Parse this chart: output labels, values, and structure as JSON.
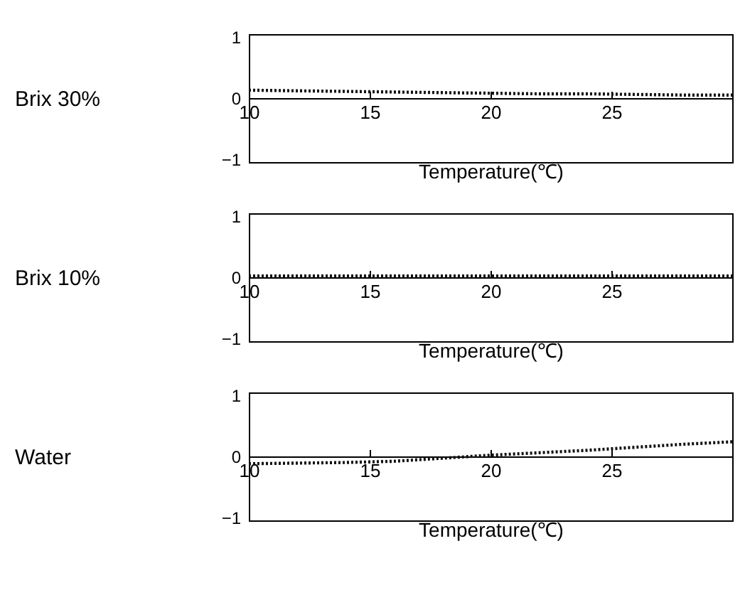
{
  "chart_data": [
    {
      "type": "line",
      "ylabel": "Brix 30%",
      "xlabel": "Temperature(℃)",
      "x": [
        10,
        12,
        14,
        16,
        18,
        20,
        22,
        24,
        26,
        28,
        30
      ],
      "series": [
        {
          "color": "#111111",
          "values": [
            0.13,
            0.12,
            0.11,
            0.1,
            0.09,
            0.08,
            0.07,
            0.07,
            0.06,
            0.05,
            0.05
          ]
        }
      ],
      "xlim": [
        10,
        30
      ],
      "ylim": [
        -1.05,
        1.05
      ],
      "xticks": [
        10,
        15,
        20,
        25
      ],
      "yticks": [
        -1,
        0,
        1
      ],
      "line_style": "dotted"
    },
    {
      "type": "line",
      "ylabel": "Brix 10%",
      "xlabel": "Temperature(℃)",
      "x": [
        10,
        12,
        14,
        16,
        18,
        20,
        22,
        24,
        26,
        28,
        30
      ],
      "series": [
        {
          "color": "#111111",
          "values": [
            0.02,
            0.02,
            0.02,
            0.02,
            0.02,
            0.02,
            0.02,
            0.02,
            0.02,
            0.02,
            0.02
          ]
        }
      ],
      "xlim": [
        10,
        30
      ],
      "ylim": [
        -1.05,
        1.05
      ],
      "xticks": [
        10,
        15,
        20,
        25
      ],
      "yticks": [
        -1,
        0,
        1
      ],
      "line_style": "dotted"
    },
    {
      "type": "line",
      "ylabel": "Water",
      "xlabel": "Temperature(℃)",
      "x": [
        10,
        12,
        14,
        16,
        18,
        20,
        22,
        24,
        26,
        28,
        30
      ],
      "series": [
        {
          "color": "#111111",
          "values": [
            -0.12,
            -0.11,
            -0.1,
            -0.08,
            -0.03,
            0.02,
            0.06,
            0.1,
            0.15,
            0.2,
            0.24
          ]
        }
      ],
      "xlim": [
        10,
        30
      ],
      "ylim": [
        -1.05,
        1.05
      ],
      "xticks": [
        10,
        15,
        20,
        25
      ],
      "yticks": [
        -1,
        0,
        1
      ],
      "line_style": "dotted"
    }
  ]
}
